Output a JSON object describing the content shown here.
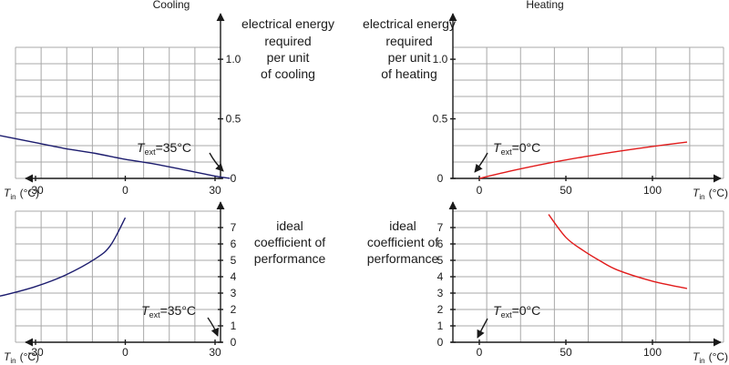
{
  "titles": {
    "cooling": "Cooling",
    "heating": "Heating"
  },
  "side_labels": {
    "energy_cooling": [
      "electrical energy",
      "required",
      "per unit",
      "of cooling"
    ],
    "energy_heating": [
      "electrical energy",
      "required",
      "per unit",
      "of heating"
    ],
    "cop": [
      "ideal",
      "coefficient of",
      "performance"
    ]
  },
  "annotations": {
    "cooling_text": {
      "symbol": "T",
      "sub": "ext",
      "value": "=35°C"
    },
    "heating_text": {
      "symbol": "T",
      "sub": "ext",
      "value": "=0°C"
    }
  },
  "axis_label": {
    "symbol": "T",
    "sub": "in",
    "unit": "(°C)"
  },
  "colors": {
    "cooling": "#1c1c6e",
    "heating": "#e11b1b",
    "grid": "#a8a8a8",
    "axis": "#1a1a1a"
  },
  "chart_data": [
    {
      "type": "line",
      "title": "Cooling",
      "xlabel": "T_in (°C)",
      "ylabel": "electrical energy required per unit of cooling",
      "xlim": [
        -50,
        40
      ],
      "ylim": [
        0,
        1.1
      ],
      "xticks": [
        -30,
        0,
        30
      ],
      "xtick_labels": [
        "-30",
        "0",
        "30"
      ],
      "yticks": [
        0,
        0.5,
        1.0
      ],
      "ytick_labels": [
        "0",
        "0.5",
        "1.0"
      ],
      "grid": true,
      "series": [
        {
          "x": [
            -48,
            -40,
            -30,
            -20,
            -10,
            0,
            10,
            20,
            30,
            35
          ],
          "y": [
            0.39,
            0.35,
            0.3,
            0.25,
            0.21,
            0.16,
            0.12,
            0.07,
            0.02,
            0.0
          ]
        }
      ]
    },
    {
      "type": "line",
      "title": "Heating",
      "xlabel": "T_in (°C)",
      "ylabel": "electrical energy required per unit of heating",
      "xlim": [
        -10,
        130
      ],
      "ylim": [
        0,
        1.1
      ],
      "xticks": [
        0,
        50,
        100
      ],
      "xtick_labels": [
        "0",
        "50",
        "100"
      ],
      "yticks": [
        0,
        0.5,
        1.0
      ],
      "ytick_labels": [
        "0",
        "0.5",
        "1.0"
      ],
      "grid": true,
      "series": [
        {
          "x": [
            0,
            20,
            40,
            60,
            80,
            100,
            120
          ],
          "y": [
            0.0,
            0.068,
            0.128,
            0.18,
            0.227,
            0.268,
            0.305
          ]
        }
      ]
    },
    {
      "type": "line",
      "title": "",
      "xlabel": "T_in (°C)",
      "ylabel": "ideal coefficient of performance",
      "xlim": [
        -50,
        40
      ],
      "ylim": [
        0,
        8
      ],
      "xticks": [
        -30,
        0,
        30
      ],
      "xtick_labels": [
        "-30",
        "0",
        "30"
      ],
      "yticks": [
        0,
        1,
        2,
        3,
        4,
        5,
        6,
        7
      ],
      "ytick_labels": [
        "0",
        "1",
        "2",
        "3",
        "4",
        "5",
        "6",
        "7"
      ],
      "grid": true,
      "series": [
        {
          "x": [
            -48,
            -40,
            -30,
            -20,
            -10,
            -5,
            0
          ],
          "y": [
            2.6,
            2.9,
            3.4,
            4.1,
            5.1,
            5.9,
            7.6
          ]
        }
      ]
    },
    {
      "type": "line",
      "title": "",
      "xlabel": "T_in (°C)",
      "ylabel": "ideal coefficient of performance",
      "xlim": [
        -10,
        130
      ],
      "ylim": [
        0,
        8
      ],
      "xticks": [
        0,
        50,
        100
      ],
      "xtick_labels": [
        "0",
        "50",
        "100"
      ],
      "yticks": [
        0,
        1,
        2,
        3,
        4,
        5,
        6,
        7
      ],
      "ytick_labels": [
        "0",
        "1",
        "2",
        "3",
        "4",
        "5",
        "6",
        "7"
      ],
      "grid": true,
      "series": [
        {
          "x": [
            40,
            50,
            60,
            70,
            80,
            100,
            120
          ],
          "y": [
            7.8,
            6.4,
            5.6,
            4.95,
            4.4,
            3.73,
            3.28
          ]
        }
      ]
    }
  ]
}
